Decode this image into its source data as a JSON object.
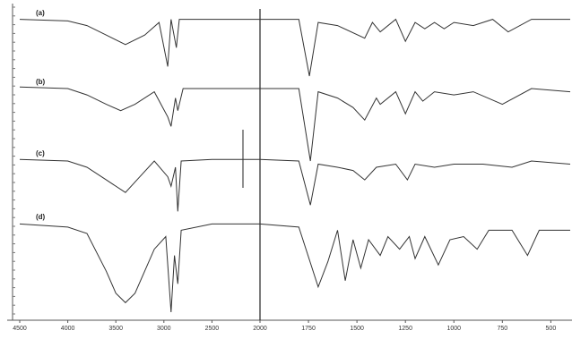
{
  "chart_data": {
    "type": "line",
    "xlim": [
      4500,
      400
    ],
    "xscale_break": 2000,
    "xticks": [
      4500,
      4000,
      3500,
      3000,
      2500,
      2000,
      1750,
      1500,
      1250,
      1000,
      750,
      500
    ],
    "ylim": [
      0,
      100
    ],
    "series": [
      {
        "name": "(a)",
        "color": "#333333",
        "x": [
          4500,
          4000,
          3800,
          3600,
          3400,
          3200,
          3050,
          2960,
          2925,
          2870,
          2840,
          2500,
          2000,
          1800,
          1745,
          1700,
          1600,
          1460,
          1420,
          1380,
          1300,
          1250,
          1200,
          1150,
          1100,
          1050,
          1000,
          900,
          800,
          720,
          600,
          400
        ],
        "values": [
          95,
          94.5,
          93,
          90,
          87,
          90,
          94,
          80,
          95,
          86,
          95,
          95,
          95,
          95,
          77,
          94,
          93,
          89,
          94,
          91,
          95,
          88,
          94,
          92,
          94,
          92,
          94,
          93,
          95,
          91,
          95,
          95
        ]
      },
      {
        "name": "(b)",
        "color": "#333333",
        "x": [
          4500,
          4000,
          3800,
          3600,
          3450,
          3300,
          3100,
          2960,
          2925,
          2880,
          2855,
          2800,
          2500,
          2000,
          1800,
          1740,
          1700,
          1600,
          1520,
          1460,
          1400,
          1380,
          1300,
          1250,
          1200,
          1160,
          1100,
          1000,
          900,
          750,
          600,
          400
        ],
        "values": [
          73.5,
          73,
          71,
          68,
          66,
          68,
          72,
          64,
          61,
          70,
          66,
          73,
          73,
          73,
          73,
          50,
          72,
          70,
          67,
          63,
          70,
          68,
          72,
          65,
          72,
          69,
          72,
          71,
          72,
          68,
          73,
          72
        ]
      },
      {
        "name": "(c)",
        "color": "#333333",
        "x": [
          4500,
          4000,
          3800,
          3600,
          3400,
          3250,
          3100,
          2960,
          2925,
          2880,
          2855,
          2820,
          2500,
          2000,
          1800,
          1740,
          1700,
          1600,
          1520,
          1460,
          1400,
          1300,
          1240,
          1200,
          1100,
          1000,
          850,
          700,
          600,
          400
        ],
        "values": [
          50.5,
          50,
          48,
          44,
          40,
          45,
          50,
          45,
          42,
          48,
          34,
          50,
          50.5,
          50.5,
          50,
          36,
          49,
          48,
          47,
          44,
          48,
          49,
          44,
          49,
          48,
          49,
          49,
          48,
          50,
          49
        ]
      },
      {
        "name": "(d)",
        "color": "#333333",
        "x": [
          4500,
          4000,
          3800,
          3600,
          3500,
          3400,
          3300,
          3100,
          2980,
          2925,
          2890,
          2855,
          2820,
          2500,
          2000,
          1800,
          1700,
          1650,
          1600,
          1560,
          1520,
          1480,
          1440,
          1380,
          1340,
          1280,
          1230,
          1200,
          1150,
          1080,
          1020,
          950,
          880,
          820,
          700,
          620,
          560,
          400
        ],
        "values": [
          30,
          29,
          27,
          15,
          8,
          5,
          8,
          22,
          26,
          2,
          20,
          11,
          28,
          30,
          30,
          29,
          10,
          18,
          28,
          12,
          25,
          16,
          25,
          20,
          26,
          22,
          26,
          19,
          26,
          17,
          25,
          26,
          22,
          28,
          28,
          20,
          28,
          28
        ]
      }
    ]
  }
}
